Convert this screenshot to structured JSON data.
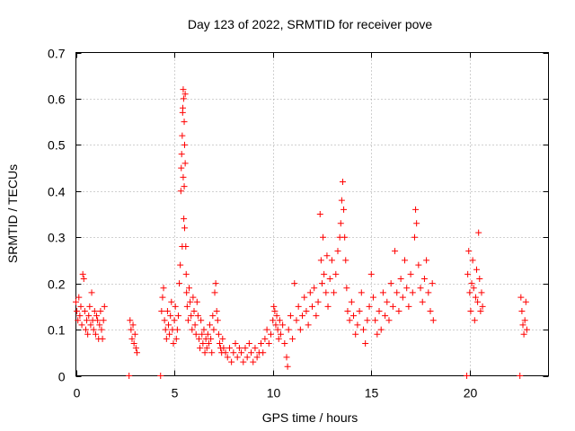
{
  "chart_data": {
    "type": "scatter",
    "title": "Day 123 of 2022, SRMTID for receiver pove",
    "xlabel": "GPS time / hours",
    "ylabel": "SRMTID / TECUs",
    "xlim": [
      0,
      24
    ],
    "ylim": [
      0,
      0.7
    ],
    "x_ticks": [
      0,
      5,
      10,
      15,
      20
    ],
    "y_ticks": [
      0,
      0.1,
      0.2,
      0.3,
      0.4,
      0.5,
      0.6,
      0.7
    ],
    "grid": true,
    "marker": "+",
    "color": "#ff0000",
    "series": [
      {
        "name": "SRMTID",
        "points": [
          [
            0.0,
            0.16
          ],
          [
            0.05,
            0.14
          ],
          [
            0.1,
            0.12
          ],
          [
            0.15,
            0.17
          ],
          [
            0.2,
            0.13
          ],
          [
            0.25,
            0.15
          ],
          [
            0.3,
            0.11
          ],
          [
            0.35,
            0.22
          ],
          [
            0.4,
            0.21
          ],
          [
            0.45,
            0.14
          ],
          [
            0.5,
            0.1
          ],
          [
            0.55,
            0.12
          ],
          [
            0.6,
            0.09
          ],
          [
            0.65,
            0.13
          ],
          [
            0.7,
            0.15
          ],
          [
            0.75,
            0.11
          ],
          [
            0.8,
            0.18
          ],
          [
            0.85,
            0.12
          ],
          [
            0.9,
            0.1
          ],
          [
            0.95,
            0.14
          ],
          [
            1.0,
            0.09
          ],
          [
            1.05,
            0.13
          ],
          [
            1.1,
            0.12
          ],
          [
            1.15,
            0.08
          ],
          [
            1.2,
            0.11
          ],
          [
            1.25,
            0.14
          ],
          [
            1.3,
            0.1
          ],
          [
            1.35,
            0.08
          ],
          [
            1.4,
            0.12
          ],
          [
            1.45,
            0.15
          ],
          [
            2.75,
            0.12
          ],
          [
            2.8,
            0.1
          ],
          [
            2.85,
            0.08
          ],
          [
            2.9,
            0.11
          ],
          [
            2.95,
            0.07
          ],
          [
            3.0,
            0.09
          ],
          [
            3.05,
            0.06
          ],
          [
            3.1,
            0.05
          ],
          [
            2.7,
            0.0
          ],
          [
            4.3,
            0.0
          ],
          [
            4.35,
            0.14
          ],
          [
            4.4,
            0.17
          ],
          [
            4.45,
            0.19
          ],
          [
            4.5,
            0.12
          ],
          [
            4.55,
            0.1
          ],
          [
            4.6,
            0.08
          ],
          [
            4.65,
            0.14
          ],
          [
            4.7,
            0.11
          ],
          [
            4.75,
            0.09
          ],
          [
            4.8,
            0.13
          ],
          [
            4.85,
            0.16
          ],
          [
            4.9,
            0.1
          ],
          [
            4.95,
            0.07
          ],
          [
            5.0,
            0.12
          ],
          [
            5.05,
            0.15
          ],
          [
            5.1,
            0.08
          ],
          [
            5.15,
            0.1
          ],
          [
            5.2,
            0.13
          ],
          [
            5.25,
            0.2
          ],
          [
            5.3,
            0.24
          ],
          [
            5.33,
            0.4
          ],
          [
            5.35,
            0.45
          ],
          [
            5.37,
            0.48
          ],
          [
            5.4,
            0.52
          ],
          [
            5.42,
            0.57
          ],
          [
            5.45,
            0.62
          ],
          [
            5.47,
            0.6
          ],
          [
            5.5,
            0.55
          ],
          [
            5.52,
            0.5
          ],
          [
            5.55,
            0.46
          ],
          [
            5.5,
            0.41
          ],
          [
            5.45,
            0.43
          ],
          [
            5.48,
            0.34
          ],
          [
            5.52,
            0.32
          ],
          [
            5.4,
            0.28
          ],
          [
            5.58,
            0.28
          ],
          [
            5.43,
            0.58
          ],
          [
            5.55,
            0.61
          ],
          [
            5.6,
            0.22
          ],
          [
            5.62,
            0.18
          ],
          [
            5.65,
            0.15
          ],
          [
            5.7,
            0.12
          ],
          [
            5.75,
            0.19
          ],
          [
            5.8,
            0.16
          ],
          [
            5.85,
            0.13
          ],
          [
            5.9,
            0.1
          ],
          [
            5.95,
            0.17
          ],
          [
            6.0,
            0.14
          ],
          [
            6.05,
            0.11
          ],
          [
            6.1,
            0.09
          ],
          [
            6.15,
            0.16
          ],
          [
            6.2,
            0.13
          ],
          [
            6.25,
            0.08
          ],
          [
            6.3,
            0.06
          ],
          [
            6.35,
            0.12
          ],
          [
            6.4,
            0.09
          ],
          [
            6.45,
            0.07
          ],
          [
            6.5,
            0.1
          ],
          [
            6.55,
            0.05
          ],
          [
            6.6,
            0.08
          ],
          [
            6.65,
            0.06
          ],
          [
            6.7,
            0.09
          ],
          [
            6.75,
            0.07
          ],
          [
            6.8,
            0.11
          ],
          [
            6.85,
            0.08
          ],
          [
            6.9,
            0.05
          ],
          [
            6.95,
            0.13
          ],
          [
            7.0,
            0.1
          ],
          [
            7.05,
            0.18
          ],
          [
            7.1,
            0.2
          ],
          [
            7.15,
            0.14
          ],
          [
            7.2,
            0.12
          ],
          [
            7.25,
            0.09
          ],
          [
            7.3,
            0.07
          ],
          [
            7.35,
            0.06
          ],
          [
            7.4,
            0.05
          ],
          [
            7.45,
            0.08
          ],
          [
            7.5,
            0.06
          ],
          [
            7.6,
            0.05
          ],
          [
            7.7,
            0.04
          ],
          [
            7.8,
            0.06
          ],
          [
            7.9,
            0.03
          ],
          [
            8.0,
            0.05
          ],
          [
            8.1,
            0.07
          ],
          [
            8.2,
            0.04
          ],
          [
            8.3,
            0.06
          ],
          [
            8.4,
            0.05
          ],
          [
            8.5,
            0.03
          ],
          [
            8.6,
            0.06
          ],
          [
            8.7,
            0.04
          ],
          [
            8.8,
            0.07
          ],
          [
            8.9,
            0.05
          ],
          [
            9.0,
            0.03
          ],
          [
            9.1,
            0.06
          ],
          [
            9.2,
            0.04
          ],
          [
            9.3,
            0.05
          ],
          [
            9.4,
            0.07
          ],
          [
            9.5,
            0.05
          ],
          [
            9.6,
            0.08
          ],
          [
            9.7,
            0.1
          ],
          [
            9.8,
            0.07
          ],
          [
            9.9,
            0.09
          ],
          [
            10.0,
            0.12
          ],
          [
            10.05,
            0.15
          ],
          [
            10.1,
            0.14
          ],
          [
            10.15,
            0.11
          ],
          [
            10.2,
            0.13
          ],
          [
            10.25,
            0.1
          ],
          [
            10.3,
            0.08
          ],
          [
            10.35,
            0.12
          ],
          [
            10.4,
            0.09
          ],
          [
            10.5,
            0.11
          ],
          [
            10.6,
            0.07
          ],
          [
            10.7,
            0.04
          ],
          [
            10.75,
            0.02
          ],
          [
            10.8,
            0.1
          ],
          [
            10.9,
            0.13
          ],
          [
            11.0,
            0.08
          ],
          [
            11.1,
            0.2
          ],
          [
            11.2,
            0.12
          ],
          [
            11.3,
            0.15
          ],
          [
            11.4,
            0.1
          ],
          [
            11.5,
            0.13
          ],
          [
            11.6,
            0.17
          ],
          [
            11.7,
            0.14
          ],
          [
            11.8,
            0.11
          ],
          [
            11.9,
            0.18
          ],
          [
            12.0,
            0.15
          ],
          [
            12.1,
            0.19
          ],
          [
            12.2,
            0.13
          ],
          [
            12.3,
            0.16
          ],
          [
            12.4,
            0.35
          ],
          [
            12.45,
            0.25
          ],
          [
            12.5,
            0.2
          ],
          [
            12.55,
            0.3
          ],
          [
            12.6,
            0.22
          ],
          [
            12.7,
            0.18
          ],
          [
            12.75,
            0.26
          ],
          [
            12.8,
            0.15
          ],
          [
            12.9,
            0.21
          ],
          [
            13.0,
            0.25
          ],
          [
            13.1,
            0.18
          ],
          [
            13.2,
            0.22
          ],
          [
            13.3,
            0.27
          ],
          [
            13.4,
            0.3
          ],
          [
            13.45,
            0.33
          ],
          [
            13.5,
            0.38
          ],
          [
            13.55,
            0.42
          ],
          [
            13.6,
            0.36
          ],
          [
            13.65,
            0.3
          ],
          [
            13.7,
            0.25
          ],
          [
            13.75,
            0.19
          ],
          [
            13.8,
            0.14
          ],
          [
            13.9,
            0.12
          ],
          [
            14.0,
            0.16
          ],
          [
            14.1,
            0.13
          ],
          [
            14.2,
            0.09
          ],
          [
            14.3,
            0.11
          ],
          [
            14.4,
            0.14
          ],
          [
            14.5,
            0.18
          ],
          [
            14.6,
            0.1
          ],
          [
            14.7,
            0.07
          ],
          [
            14.8,
            0.12
          ],
          [
            14.9,
            0.15
          ],
          [
            15.0,
            0.22
          ],
          [
            15.1,
            0.17
          ],
          [
            15.2,
            0.12
          ],
          [
            15.3,
            0.09
          ],
          [
            15.4,
            0.14
          ],
          [
            15.5,
            0.1
          ],
          [
            15.6,
            0.18
          ],
          [
            15.7,
            0.13
          ],
          [
            15.8,
            0.16
          ],
          [
            15.9,
            0.12
          ],
          [
            16.0,
            0.2
          ],
          [
            16.1,
            0.15
          ],
          [
            16.2,
            0.27
          ],
          [
            16.3,
            0.18
          ],
          [
            16.4,
            0.14
          ],
          [
            16.5,
            0.21
          ],
          [
            16.6,
            0.17
          ],
          [
            16.7,
            0.25
          ],
          [
            16.8,
            0.19
          ],
          [
            16.9,
            0.15
          ],
          [
            17.0,
            0.22
          ],
          [
            17.1,
            0.18
          ],
          [
            17.2,
            0.3
          ],
          [
            17.25,
            0.36
          ],
          [
            17.3,
            0.33
          ],
          [
            17.4,
            0.24
          ],
          [
            17.5,
            0.19
          ],
          [
            17.6,
            0.16
          ],
          [
            17.7,
            0.21
          ],
          [
            17.8,
            0.25
          ],
          [
            17.9,
            0.18
          ],
          [
            18.0,
            0.14
          ],
          [
            18.1,
            0.2
          ],
          [
            18.15,
            0.12
          ],
          [
            19.85,
            0.0
          ],
          [
            19.9,
            0.22
          ],
          [
            19.95,
            0.27
          ],
          [
            20.0,
            0.18
          ],
          [
            20.05,
            0.14
          ],
          [
            20.1,
            0.2
          ],
          [
            20.15,
            0.25
          ],
          [
            20.2,
            0.19
          ],
          [
            20.25,
            0.12
          ],
          [
            20.3,
            0.17
          ],
          [
            20.35,
            0.23
          ],
          [
            20.4,
            0.16
          ],
          [
            20.45,
            0.31
          ],
          [
            20.5,
            0.21
          ],
          [
            20.55,
            0.14
          ],
          [
            20.6,
            0.18
          ],
          [
            20.65,
            0.15
          ],
          [
            22.55,
            0.0
          ],
          [
            22.6,
            0.17
          ],
          [
            22.65,
            0.14
          ],
          [
            22.7,
            0.11
          ],
          [
            22.75,
            0.09
          ],
          [
            22.8,
            0.12
          ],
          [
            22.85,
            0.16
          ],
          [
            22.9,
            0.1
          ]
        ]
      }
    ]
  }
}
